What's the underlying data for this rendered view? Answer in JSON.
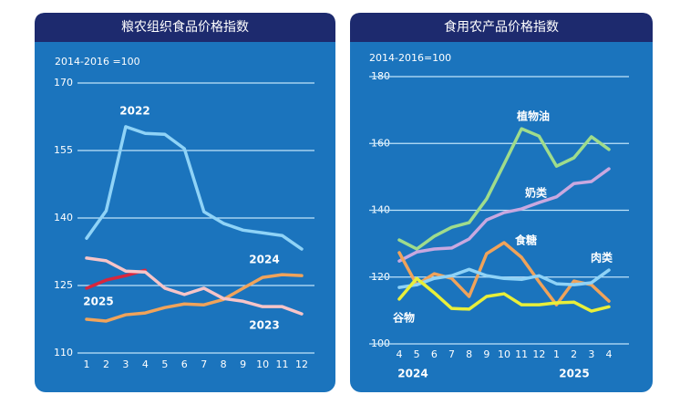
{
  "chart_data": [
    {
      "type": "line",
      "title": "粮农组织食品价格指数",
      "subtitle": "2014-2016 =100",
      "categories": [
        "1",
        "2",
        "3",
        "4",
        "5",
        "6",
        "7",
        "8",
        "9",
        "10",
        "11",
        "12"
      ],
      "ylim": [
        110,
        170
      ],
      "yticks": [
        110,
        125,
        140,
        155,
        170
      ],
      "grid": true,
      "series": [
        {
          "name": "2022",
          "color": "#8fd3f7",
          "values": [
            135.5,
            141.6,
            160.3,
            158.8,
            158.6,
            155.4,
            141.4,
            138.8,
            137.3,
            136.7,
            136.1,
            133.1
          ]
        },
        {
          "name": "2024",
          "color": "#f0a35a",
          "values": [
            117.5,
            117.1,
            118.5,
            118.9,
            120.1,
            120.9,
            120.7,
            121.9,
            124.4,
            126.8,
            127.4,
            127.2
          ]
        },
        {
          "name": "2025",
          "color": "#d7263d",
          "values": [
            124.4,
            126.2,
            127.2,
            128.4,
            null,
            null,
            null,
            null,
            null,
            null,
            null,
            null
          ]
        },
        {
          "name": "2023",
          "color": "#f6c4c8",
          "values": [
            131.1,
            130.5,
            128.2,
            128.0,
            124.4,
            123.0,
            124.4,
            122.1,
            121.5,
            120.3,
            120.3,
            118.7
          ]
        }
      ]
    },
    {
      "type": "line",
      "title": "食用农产品价格指数",
      "subtitle": "2014-2016=100",
      "categories": [
        "4",
        "5",
        "6",
        "7",
        "8",
        "9",
        "10",
        "11",
        "12",
        "1",
        "2",
        "3",
        "4"
      ],
      "x_group_labels": [
        "2024",
        "2025"
      ],
      "ylim": [
        100,
        180
      ],
      "yticks": [
        100,
        120,
        140,
        160,
        180
      ],
      "grid": true,
      "series": [
        {
          "name": "植物油",
          "color": "#9fdc8c",
          "values": [
            131.1,
            128.4,
            132.2,
            134.9,
            136.3,
            143.4,
            153.8,
            164.4,
            162.2,
            153.2,
            155.7,
            162.0,
            158.2
          ]
        },
        {
          "name": "奶类",
          "color": "#c9a8e0",
          "values": [
            124.8,
            127.5,
            128.4,
            128.7,
            131.4,
            137.1,
            139.3,
            140.4,
            142.3,
            144.0,
            148.0,
            148.6,
            152.4
          ]
        },
        {
          "name": "食糖",
          "color": "#f0a35a",
          "values": [
            127.3,
            117.7,
            121.0,
            119.6,
            114.2,
            127.0,
            130.3,
            125.9,
            118.6,
            111.7,
            118.8,
            117.7,
            112.8
          ]
        },
        {
          "name": "肉类",
          "color": "#8fd3f7",
          "values": [
            116.9,
            117.7,
            119.6,
            120.4,
            122.3,
            120.4,
            119.6,
            119.3,
            120.4,
            118.0,
            117.7,
            118.3,
            122.1
          ]
        },
        {
          "name": "谷物",
          "color": "#e8ef3a",
          "values": [
            113.4,
            119.6,
            115.3,
            110.6,
            110.4,
            114.2,
            115.0,
            111.7,
            111.7,
            112.3,
            112.5,
            109.8,
            111.1
          ]
        }
      ]
    }
  ]
}
